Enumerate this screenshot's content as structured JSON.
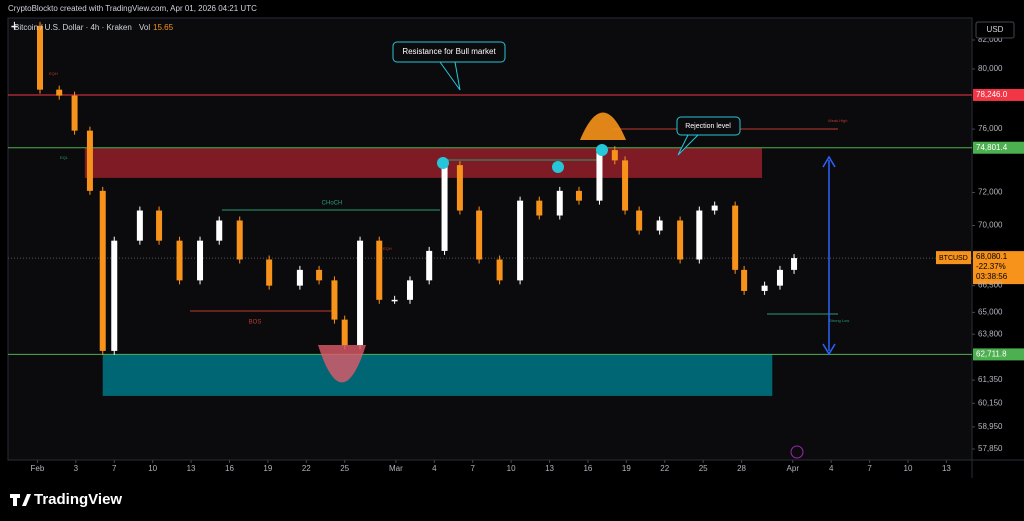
{
  "header": {
    "credit": "CryptoBlockto created with TradingView.com, Apr 01, 2026 04:21 UTC",
    "symbol": "Bitcoin / U.S. Dollar · 4h · Kraken",
    "vol_label": "Vol",
    "vol_value": "15.65",
    "currency": "USD",
    "brand": "TradingView"
  },
  "chart_data": {
    "type": "candlestick",
    "log_scale": true,
    "grid": false,
    "up_color": "#ffffff",
    "down_color": "#f7931a",
    "x": [
      -1.8,
      0.2,
      1.7,
      2.9,
      4.1,
      5.1,
      6.0,
      8.0,
      9.5,
      11.1,
      12.7,
      14.2,
      15.8,
      18.1,
      20.5,
      22.0,
      23.2,
      24.0,
      25.2,
      26.7,
      27.9,
      29.1,
      30.6,
      31.8,
      33.0,
      34.5,
      36.1,
      37.7,
      39.2,
      40.8,
      42.3,
      43.9,
      45.1,
      45.9,
      47.0,
      48.6,
      50.2,
      51.7,
      52.9,
      54.5,
      55.2,
      56.8,
      58.0,
      59.1
    ],
    "values": [
      83000,
      78600,
      78200,
      75900,
      72100,
      62900,
      69100,
      70900,
      69100,
      66800,
      69100,
      70300,
      68000,
      66500,
      67400,
      66800,
      64600,
      63200,
      69100,
      65700,
      65700,
      66800,
      68500,
      73700,
      70900,
      68000,
      66800,
      71500,
      70600,
      72100,
      71500,
      74650,
      74000,
      70900,
      69700,
      70300,
      68000,
      70900,
      71200,
      67400,
      66200,
      66500,
      67400,
      68080.1
    ],
    "xlim": [
      -2.3,
      73
    ],
    "ylim": [
      57310,
      84270
    ],
    "xticks": [
      {
        "value": 0,
        "label": "Feb"
      },
      3,
      {
        "value": 6,
        "label": "7"
      },
      {
        "value": 9,
        "label": "10"
      },
      {
        "value": 12,
        "label": "13"
      },
      {
        "value": 15,
        "label": "16"
      },
      {
        "value": 18,
        "label": "19"
      },
      {
        "value": 21,
        "label": "22"
      },
      {
        "value": 24,
        "label": "25"
      },
      {
        "value": 28,
        "label": "Mar"
      },
      {
        "value": 31,
        "label": "4"
      },
      {
        "value": 34,
        "label": "7"
      },
      {
        "value": 37,
        "label": "10"
      },
      {
        "value": 40,
        "label": "13"
      },
      {
        "value": 43,
        "label": "16"
      },
      {
        "value": 46,
        "label": "19"
      },
      {
        "value": 49,
        "label": "22"
      },
      {
        "value": 52,
        "label": "25"
      },
      {
        "value": 55,
        "label": "28"
      },
      {
        "value": 59,
        "label": "Apr"
      },
      {
        "value": 62,
        "label": "4"
      },
      {
        "value": 65,
        "label": "7"
      },
      {
        "value": 68,
        "label": "10"
      },
      {
        "value": 71,
        "label": "13"
      }
    ],
    "yticks": [
      {
        "value": 82000,
        "label": "82,000"
      },
      {
        "value": 80000,
        "label": "80,000"
      },
      {
        "value": 76000,
        "label": "76,000"
      },
      {
        "value": 72000,
        "label": "72,000"
      },
      {
        "value": 70000,
        "label": "70,000"
      },
      {
        "value": 66500,
        "label": "66,500"
      },
      {
        "value": 65000,
        "label": "65,000"
      },
      {
        "value": 63800,
        "label": "63,800"
      },
      {
        "value": 61350,
        "label": "61,350"
      },
      {
        "value": 60150,
        "label": "60,150"
      },
      {
        "value": 58950,
        "label": "58,950"
      },
      {
        "value": 57850,
        "label": "57,850"
      }
    ],
    "levels": [
      {
        "value": 78246,
        "label": "78,246.0",
        "color": "#f23645"
      },
      {
        "value": 74801.4,
        "label": "74,801.4",
        "color": "#4caf50"
      },
      {
        "value": 62711.8,
        "label": "62,711.8",
        "color": "#4caf50"
      }
    ],
    "last_price": {
      "value": 68080.1,
      "label": "68,080.1",
      "symbol": "BTCUSD",
      "change": "-22.37%",
      "countdown": "03:38:56",
      "color": "#f7931a"
    },
    "zones": [
      {
        "top": 74801.4,
        "bottom": 72900,
        "x0": 3.7,
        "x1": 56.6,
        "color": "#8c1d28"
      },
      {
        "top": 62711.8,
        "bottom": 60530,
        "x0": 5.1,
        "x1": 57.4,
        "color": "#00707e"
      }
    ],
    "annotations": {
      "resistance": "Resistance for Bull market",
      "rejection": "Rejection level",
      "choch": "CHoCH",
      "bos": "BOS",
      "eqh": "EQH",
      "eqh2": "EQH",
      "eql": "EQL",
      "weak_high": "Weak High",
      "strong_low": "Strong Low"
    }
  }
}
